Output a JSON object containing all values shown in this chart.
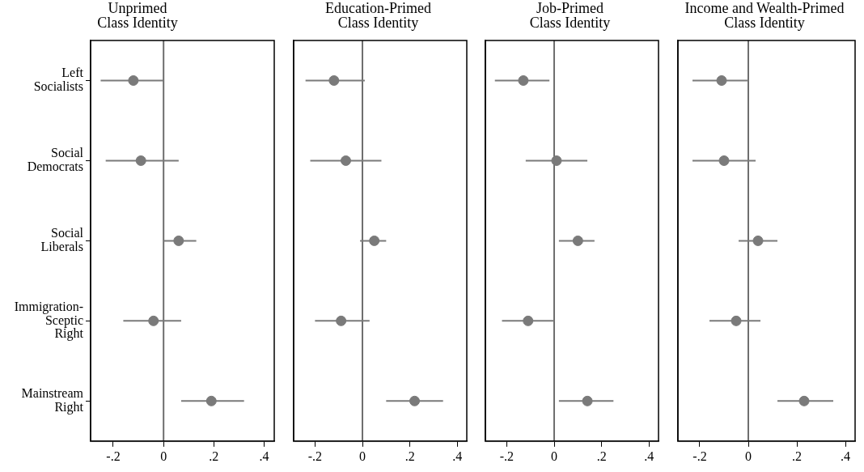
{
  "chart_data": [
    {
      "type": "scatter",
      "orientation": "horizontal",
      "title": "Unprimed Class Identity",
      "categories": [
        "Left Socialists",
        "Social Democrats",
        "Social Liberals",
        "Immigration-Sceptic Right",
        "Mainstream Right"
      ],
      "values": [
        -0.12,
        -0.09,
        0.06,
        -0.04,
        0.19
      ],
      "errors": [
        [
          -0.25,
          0
        ],
        [
          -0.23,
          0.06
        ],
        [
          0,
          0.13
        ],
        [
          -0.16,
          0.07
        ],
        [
          0.07,
          0.32
        ]
      ],
      "color": "#7a7a7a",
      "marker": "circle",
      "xlim": [
        -0.29,
        0.44
      ],
      "xticks": [
        {
          "value": -0.2,
          "label": "-.2"
        },
        {
          "value": 0,
          "label": "0"
        },
        {
          "value": 0.2,
          "label": ".2"
        },
        {
          "value": 0.4,
          "label": ".4"
        }
      ],
      "ref_lines": [
        {
          "axis": "x",
          "value": 0,
          "color": "#6e6e6e"
        }
      ],
      "grid": false
    },
    {
      "type": "scatter",
      "orientation": "horizontal",
      "title": "Education-Primed Class Identity",
      "categories": [
        null,
        null,
        null,
        null,
        null
      ],
      "values": [
        -0.12,
        -0.07,
        0.05,
        -0.09,
        0.22
      ],
      "errors": [
        [
          -0.24,
          0.01
        ],
        [
          -0.22,
          0.08
        ],
        [
          -0.01,
          0.1
        ],
        [
          -0.2,
          0.03
        ],
        [
          0.1,
          0.34
        ]
      ],
      "color": "#7a7a7a",
      "marker": "circle",
      "xlim": [
        -0.29,
        0.44
      ],
      "xticks": [
        {
          "value": -0.2,
          "label": "-.2"
        },
        {
          "value": 0,
          "label": "0"
        },
        {
          "value": 0.2,
          "label": ".2"
        },
        {
          "value": 0.4,
          "label": ".4"
        }
      ],
      "ref_lines": [
        {
          "axis": "x",
          "value": 0,
          "color": "#6e6e6e"
        }
      ],
      "grid": false,
      "tick_labels": "x"
    },
    {
      "type": "scatter",
      "orientation": "horizontal",
      "title": "Job-Primed Class Identity",
      "categories": [
        null,
        null,
        null,
        null,
        null
      ],
      "values": [
        -0.13,
        0.01,
        0.1,
        -0.11,
        0.14
      ],
      "errors": [
        [
          -0.25,
          -0.02
        ],
        [
          -0.12,
          0.14
        ],
        [
          0.02,
          0.17
        ],
        [
          -0.22,
          0
        ],
        [
          0.02,
          0.25
        ]
      ],
      "color": "#7a7a7a",
      "marker": "circle",
      "xlim": [
        -0.29,
        0.44
      ],
      "xticks": [
        {
          "value": -0.2,
          "label": "-.2"
        },
        {
          "value": 0,
          "label": "0"
        },
        {
          "value": 0.2,
          "label": ".2"
        },
        {
          "value": 0.4,
          "label": ".4"
        }
      ],
      "ref_lines": [
        {
          "axis": "x",
          "value": 0,
          "color": "#6e6e6e"
        }
      ],
      "grid": false,
      "tick_labels": "x"
    },
    {
      "type": "scatter",
      "orientation": "horizontal",
      "title": "Income and Wealth-Primed Class Identity",
      "categories": [
        null,
        null,
        null,
        null,
        null
      ],
      "values": [
        -0.11,
        -0.1,
        0.04,
        -0.05,
        0.23
      ],
      "errors": [
        [
          -0.23,
          0
        ],
        [
          -0.23,
          0.03
        ],
        [
          -0.04,
          0.12
        ],
        [
          -0.16,
          0.05
        ],
        [
          0.12,
          0.35
        ]
      ],
      "color": "#7a7a7a",
      "marker": "circle",
      "xlim": [
        -0.29,
        0.44
      ],
      "xticks": [
        {
          "value": -0.2,
          "label": "-.2"
        },
        {
          "value": 0,
          "label": "0"
        },
        {
          "value": 0.2,
          "label": ".2"
        },
        {
          "value": 0.4,
          "label": ".4"
        }
      ],
      "ref_lines": [
        {
          "axis": "x",
          "value": 0,
          "color": "#6e6e6e"
        }
      ],
      "grid": false,
      "tick_labels": "x"
    }
  ]
}
